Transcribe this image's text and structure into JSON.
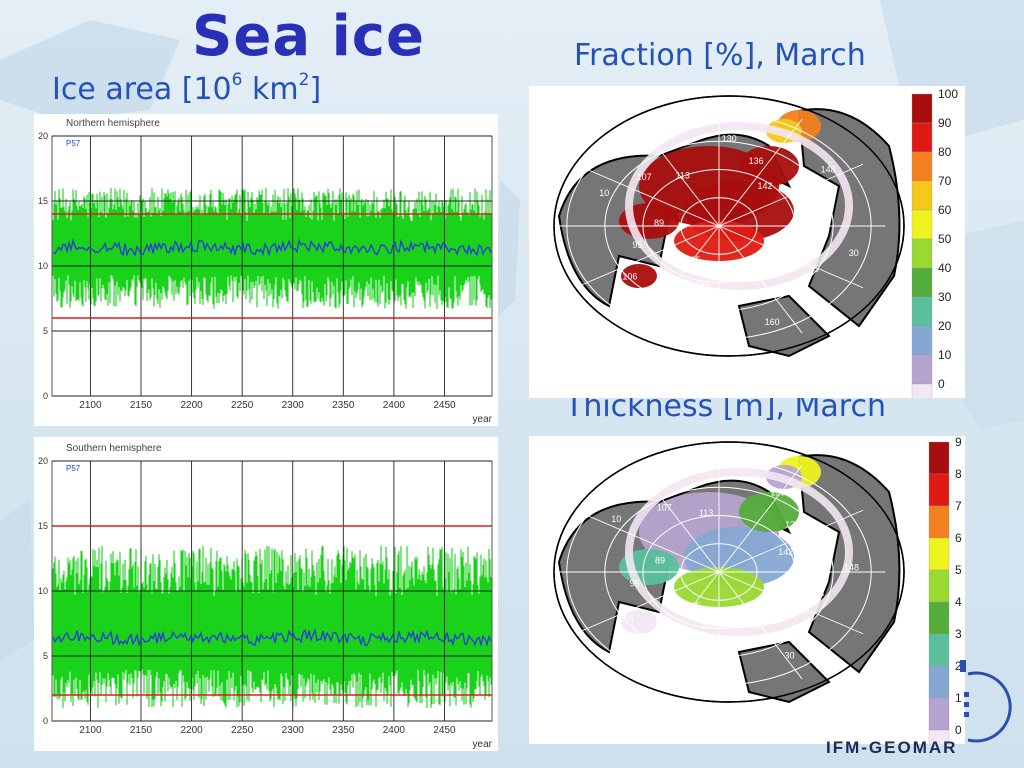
{
  "slide": {
    "title": "Sea ice",
    "ice_area_heading": {
      "prefix": "Ice area [10",
      "exp1": "6",
      "mid": " km",
      "exp2": "2",
      "suffix": "]"
    },
    "fraction_heading": "Fraction [%], March",
    "thickness_heading": "Thickness [m], March",
    "logo_text": "IFM-GEOMAR"
  },
  "colors": {
    "title": "#2a2fb8",
    "heading": "#2552b6",
    "ensemble_band": "#19d219",
    "mean_line": "#2d3fd6",
    "bound_line": "#d92020",
    "land": "#767676"
  },
  "chart_data": [
    {
      "type": "line",
      "title": "Northern hemisphere",
      "legend_label": "P57",
      "xlabel": "year",
      "xlim": [
        2062,
        2497
      ],
      "ylim": [
        0,
        20
      ],
      "xticks": [
        2100,
        2150,
        2200,
        2250,
        2300,
        2350,
        2400,
        2450
      ],
      "yticks": [
        0,
        5,
        10,
        15,
        20
      ],
      "grid": true,
      "reference_lines": [
        6,
        14,
        10
      ],
      "series": [
        {
          "label": "P57",
          "role": "mean",
          "value": 11.4
        },
        {
          "role": "range",
          "min": 6.7,
          "max": 16.0
        }
      ]
    },
    {
      "type": "line",
      "title": "Southern hemisphere",
      "legend_label": "P57",
      "xlabel": "year",
      "xlim": [
        2062,
        2497
      ],
      "ylim": [
        0,
        20
      ],
      "xticks": [
        2100,
        2150,
        2200,
        2250,
        2300,
        2350,
        2400,
        2450
      ],
      "yticks": [
        0,
        5,
        10,
        15,
        20
      ],
      "grid": true,
      "reference_lines": [
        2,
        15,
        10
      ],
      "series": [
        {
          "label": "P57",
          "role": "mean",
          "value": 6.4
        },
        {
          "role": "range",
          "min": 1.0,
          "max": 13.5
        }
      ]
    },
    {
      "type": "heatmap",
      "title": "Fraction [%], March",
      "colorbar": {
        "labels": [
          "100",
          "90",
          "80",
          "70",
          "60",
          "50",
          "40",
          "30",
          "20",
          "10",
          "0"
        ],
        "colors": [
          "#a80e0e",
          "#e01a12",
          "#f37f1e",
          "#f6c81a",
          "#eef21e",
          "#9ad832",
          "#54ad3a",
          "#5bbf9c",
          "#85a8d3",
          "#b5a4cf",
          "#f2e7f2"
        ]
      },
      "contour_labels": [
        "105",
        "106",
        "95",
        "89",
        "10",
        "107",
        "113",
        "124",
        "130",
        "136",
        "142",
        "148",
        "24",
        "118",
        "30",
        "35",
        "154",
        "160",
        "115",
        "105"
      ]
    },
    {
      "type": "heatmap",
      "title": "Thickness [m], March",
      "colorbar": {
        "labels": [
          "9",
          "8",
          "7",
          "6",
          "5",
          "4",
          "3",
          "2",
          "1",
          "0"
        ],
        "colors": [
          "#a80e0e",
          "#e01a12",
          "#f37f1e",
          "#eef21e",
          "#9ad832",
          "#54ad3a",
          "#5bbf9c",
          "#85a8d3",
          "#b5a4cf",
          "#f2e7f2"
        ]
      },
      "contour_labels": [
        "105",
        "106",
        "95",
        "89",
        "10",
        "107",
        "113",
        "124",
        "130",
        "136",
        "142",
        "148",
        "24",
        "118",
        "30",
        "29",
        "105"
      ]
    }
  ]
}
